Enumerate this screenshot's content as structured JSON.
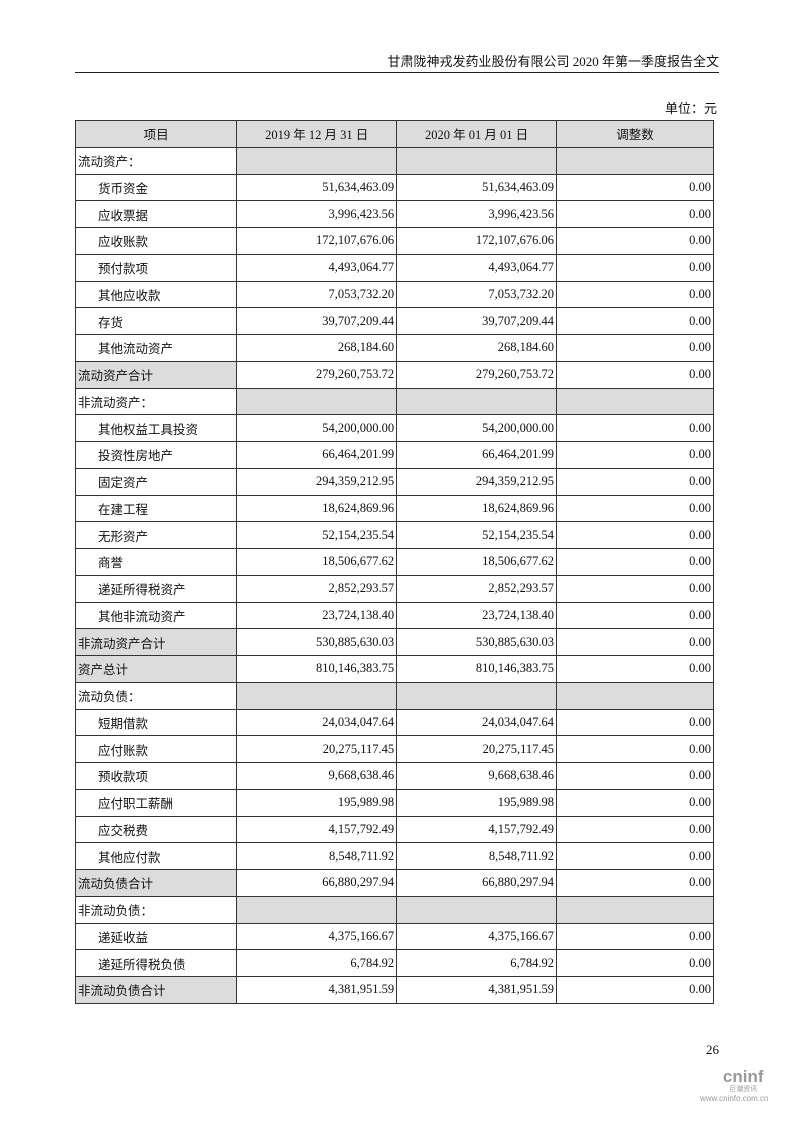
{
  "header": "甘肃陇神戎发药业股份有限公司 2020 年第一季度报告全文",
  "unit": "单位：元",
  "columns": [
    "项目",
    "2019 年 12 月 31 日",
    "2020 年 01 月 01 日",
    "调整数"
  ],
  "rows": [
    {
      "type": "section",
      "label": "流动资产："
    },
    {
      "type": "item",
      "label": "货币资金",
      "v": [
        "51,634,463.09",
        "51,634,463.09",
        "0.00"
      ]
    },
    {
      "type": "item",
      "label": "应收票据",
      "v": [
        "3,996,423.56",
        "3,996,423.56",
        "0.00"
      ]
    },
    {
      "type": "item",
      "label": "应收账款",
      "v": [
        "172,107,676.06",
        "172,107,676.06",
        "0.00"
      ]
    },
    {
      "type": "item",
      "label": "预付款项",
      "v": [
        "4,493,064.77",
        "4,493,064.77",
        "0.00"
      ]
    },
    {
      "type": "item",
      "label": "其他应收款",
      "v": [
        "7,053,732.20",
        "7,053,732.20",
        "0.00"
      ]
    },
    {
      "type": "item",
      "label": "存货",
      "v": [
        "39,707,209.44",
        "39,707,209.44",
        "0.00"
      ]
    },
    {
      "type": "item",
      "label": "其他流动资产",
      "v": [
        "268,184.60",
        "268,184.60",
        "0.00"
      ]
    },
    {
      "type": "total",
      "label": "流动资产合计",
      "v": [
        "279,260,753.72",
        "279,260,753.72",
        "0.00"
      ]
    },
    {
      "type": "section",
      "label": "非流动资产："
    },
    {
      "type": "item",
      "label": "其他权益工具投资",
      "v": [
        "54,200,000.00",
        "54,200,000.00",
        "0.00"
      ]
    },
    {
      "type": "item",
      "label": "投资性房地产",
      "v": [
        "66,464,201.99",
        "66,464,201.99",
        "0.00"
      ]
    },
    {
      "type": "item",
      "label": "固定资产",
      "v": [
        "294,359,212.95",
        "294,359,212.95",
        "0.00"
      ]
    },
    {
      "type": "item",
      "label": "在建工程",
      "v": [
        "18,624,869.96",
        "18,624,869.96",
        "0.00"
      ]
    },
    {
      "type": "item",
      "label": "无形资产",
      "v": [
        "52,154,235.54",
        "52,154,235.54",
        "0.00"
      ]
    },
    {
      "type": "item",
      "label": "商誉",
      "v": [
        "18,506,677.62",
        "18,506,677.62",
        "0.00"
      ]
    },
    {
      "type": "item",
      "label": "递延所得税资产",
      "v": [
        "2,852,293.57",
        "2,852,293.57",
        "0.00"
      ]
    },
    {
      "type": "item",
      "label": "其他非流动资产",
      "v": [
        "23,724,138.40",
        "23,724,138.40",
        "0.00"
      ]
    },
    {
      "type": "total",
      "label": "非流动资产合计",
      "v": [
        "530,885,630.03",
        "530,885,630.03",
        "0.00"
      ]
    },
    {
      "type": "total",
      "label": "资产总计",
      "v": [
        "810,146,383.75",
        "810,146,383.75",
        "0.00"
      ]
    },
    {
      "type": "section",
      "label": "流动负债："
    },
    {
      "type": "item",
      "label": "短期借款",
      "v": [
        "24,034,047.64",
        "24,034,047.64",
        "0.00"
      ]
    },
    {
      "type": "item",
      "label": "应付账款",
      "v": [
        "20,275,117.45",
        "20,275,117.45",
        "0.00"
      ]
    },
    {
      "type": "item",
      "label": "预收款项",
      "v": [
        "9,668,638.46",
        "9,668,638.46",
        "0.00"
      ]
    },
    {
      "type": "item",
      "label": "应付职工薪酬",
      "v": [
        "195,989.98",
        "195,989.98",
        "0.00"
      ]
    },
    {
      "type": "item",
      "label": "应交税费",
      "v": [
        "4,157,792.49",
        "4,157,792.49",
        "0.00"
      ]
    },
    {
      "type": "item",
      "label": "其他应付款",
      "v": [
        "8,548,711.92",
        "8,548,711.92",
        "0.00"
      ]
    },
    {
      "type": "total",
      "label": "流动负债合计",
      "v": [
        "66,880,297.94",
        "66,880,297.94",
        "0.00"
      ]
    },
    {
      "type": "section",
      "label": "非流动负债："
    },
    {
      "type": "item",
      "label": "递延收益",
      "v": [
        "4,375,166.67",
        "4,375,166.67",
        "0.00"
      ]
    },
    {
      "type": "item",
      "label": "递延所得税负债",
      "v": [
        "6,784.92",
        "6,784.92",
        "0.00"
      ]
    },
    {
      "type": "total",
      "label": "非流动负债合计",
      "v": [
        "4,381,951.59",
        "4,381,951.59",
        "0.00"
      ]
    }
  ],
  "page_number": "26",
  "logo": {
    "brand": "cninf",
    "cn": "巨潮资讯",
    "url": "www.cninfo.com.cn"
  }
}
